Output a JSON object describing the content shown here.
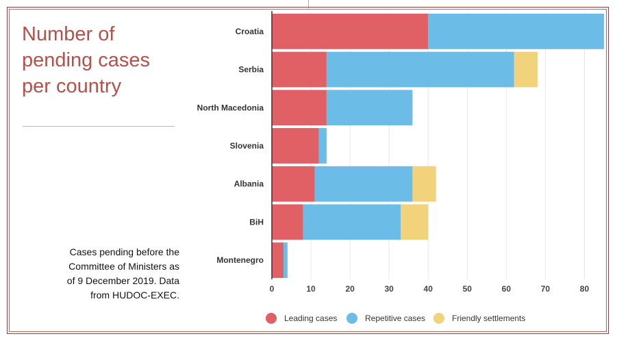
{
  "title": "Number of pending cases per country",
  "caption": "Cases pending before the Committee of Ministers as of 9 December 2019. Data from HUDOC-EXEC.",
  "colors": {
    "leading": "#e06065",
    "repetitive": "#6bbde7",
    "friendly": "#f3d27c",
    "grid": "#e6e6e6",
    "axis": "#333333",
    "title": "#b5504a",
    "frame": "#8e4040"
  },
  "chart_data": {
    "type": "bar",
    "orientation": "horizontal",
    "stacked": true,
    "categories": [
      "Croatia",
      "Serbia",
      "North Macedonia",
      "Slovenia",
      "Albania",
      "BiH",
      "Montenegro"
    ],
    "series": [
      {
        "name": "Leading cases",
        "color_key": "leading",
        "values": [
          40,
          14,
          14,
          12,
          11,
          8,
          3
        ]
      },
      {
        "name": "Repetitive cases",
        "color_key": "repetitive",
        "values": [
          45,
          48,
          22,
          2,
          25,
          25,
          1
        ]
      },
      {
        "name": "Friendly settlements",
        "color_key": "friendly",
        "values": [
          0,
          6,
          0,
          0,
          6,
          7,
          0
        ]
      }
    ],
    "x_ticks": [
      0,
      10,
      20,
      30,
      40,
      50,
      60,
      70,
      80
    ],
    "xlim": [
      0,
      85
    ],
    "grid": true,
    "legend_position": "bottom"
  }
}
